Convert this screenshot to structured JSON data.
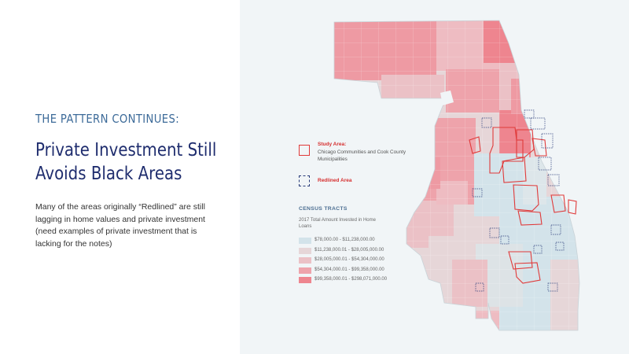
{
  "slide": {
    "eyebrow": "THE PATTERN CONTINUES:",
    "headline_line1": "Private Investment Still",
    "headline_line2": "Avoids Black Areas",
    "body": "Many of the areas originally “Redlined” are still lagging in home values and private investment (need examples of private investment that is lacking for the notes)"
  },
  "legend": {
    "study_area_title": "Study Area:",
    "study_area_desc": "Chicago Communities and Cook County Municipalities",
    "redlined_label": "Redlined Area",
    "census_title": "CENSUS TRACTS",
    "census_sub": "2017 Total Amount Invested in Home Loans",
    "ranges": [
      {
        "label": "$78,000.00 - $11,238,000.00",
        "color": "#d3e3ea"
      },
      {
        "label": "$11,238,000.01 - $28,005,000.00",
        "color": "#e6d6d8"
      },
      {
        "label": "$28,005,000.01 - $54,304,000.00",
        "color": "#ebc1c6"
      },
      {
        "label": "$54,304,000.01 - $99,358,000.00",
        "color": "#eea3ab"
      },
      {
        "label": "$99,358,000.01 - $298,071,000.00",
        "color": "#ee858f"
      }
    ]
  },
  "colors": {
    "eyebrow": "#3d6b99",
    "headline": "#1f2d6e",
    "study_area_outline": "#e03a3a",
    "redline_outline": "#2a3d7a",
    "map_background": "#f1f5f7"
  }
}
